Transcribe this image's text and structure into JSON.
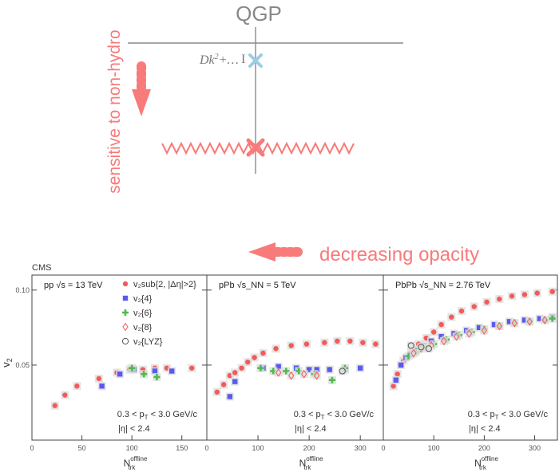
{
  "diagram": {
    "title": "QGP",
    "vertical_label": "sensitive to non-hydro",
    "horizontal_label": "decreasing opacity",
    "formula_main": "Dk",
    "formula_sup": "2",
    "formula_tail": "+…",
    "formula_bar": "I",
    "colors": {
      "arrow": "#f87a7a",
      "line": "#8a8a8a",
      "text_red": "#f87a7a",
      "marker_blue": "#9ccde8",
      "marker_red": "#f87a7a"
    }
  },
  "figure": {
    "experiment": "CMS",
    "cut_pt": "0.3 < p",
    "cut_pt_sub": "T",
    "cut_pt_tail": " < 3.0 GeV/c",
    "cut_eta": "|η| < 2.4",
    "ylabel": "v",
    "ylabel_sub": "2",
    "xlabel_main": "N",
    "xlabel_sup": "offline",
    "xlabel_sub": "trk",
    "yticks": [
      0.05,
      0.1
    ],
    "ytick_labels": [
      "0.05",
      "0.10"
    ]
  },
  "chart_data": [
    {
      "type": "scatter",
      "panel_label": "pp",
      "system_text": "√s = 13 TeV",
      "xlim": [
        0,
        175
      ],
      "ylim": [
        0,
        0.11
      ],
      "xticks": [
        0,
        50,
        100,
        150
      ],
      "xtick_labels": [
        "0",
        "50",
        "100",
        "150"
      ],
      "legend": [
        "v₂sub{2, |Δη|>2}",
        "v₂{4}",
        "v₂{6}",
        "v₂{8}",
        "v₂{LYZ}"
      ],
      "legend_placement": "top-right",
      "series": [
        {
          "marker": "circle",
          "color": "#f35a5a",
          "x": [
            23,
            33,
            45,
            67,
            85,
            98,
            111,
            123,
            135,
            160
          ],
          "y": [
            0.023,
            0.03,
            0.036,
            0.041,
            0.045,
            0.047,
            0.047,
            0.048,
            0.048,
            0.048
          ]
        },
        {
          "marker": "square",
          "color": "#5a5af0",
          "x": [
            70,
            88,
            102,
            123,
            140
          ],
          "y": [
            0.036,
            0.044,
            0.047,
            0.046,
            0.046
          ]
        },
        {
          "marker": "cross",
          "color": "#4dbb4d",
          "x": [
            100,
            112,
            125
          ],
          "y": [
            0.048,
            0.044,
            0.042
          ]
        }
      ]
    },
    {
      "type": "scatter",
      "panel_label": "pPb",
      "system_text": "√s_NN = 5 TeV",
      "xlim": [
        0,
        345
      ],
      "ylim": [
        0,
        0.11
      ],
      "xticks": [
        0,
        100,
        200,
        300
      ],
      "xtick_labels": [
        "0",
        "100",
        "200",
        "300"
      ],
      "series": [
        {
          "marker": "circle",
          "color": "#f35a5a",
          "x": [
            20,
            33,
            45,
            55,
            68,
            80,
            93,
            110,
            135,
            165,
            195,
            230,
            255,
            280,
            305,
            330
          ],
          "y": [
            0.032,
            0.037,
            0.043,
            0.045,
            0.048,
            0.052,
            0.055,
            0.058,
            0.061,
            0.063,
            0.064,
            0.065,
            0.066,
            0.066,
            0.065,
            0.064
          ]
        },
        {
          "marker": "square",
          "color": "#5a5af0",
          "x": [
            45,
            55,
            110,
            140,
            175,
            200,
            215,
            240,
            270,
            300
          ],
          "y": [
            0.029,
            0.039,
            0.048,
            0.049,
            0.048,
            0.047,
            0.047,
            0.047,
            0.047,
            0.048
          ]
        },
        {
          "marker": "cross",
          "color": "#4dbb4d",
          "x": [
            105,
            130,
            155,
            180,
            210,
            245,
            270
          ],
          "y": [
            0.048,
            0.046,
            0.046,
            0.046,
            0.044,
            0.04,
            0.048
          ]
        },
        {
          "marker": "diamond",
          "color": "#f35a5a",
          "x": [
            140,
            165,
            190,
            215
          ],
          "y": [
            0.045,
            0.043,
            0.044,
            0.043
          ]
        },
        {
          "marker": "open_circle",
          "color": "#555555",
          "x": [
            265
          ],
          "y": [
            0.046
          ]
        }
      ]
    },
    {
      "type": "scatter",
      "panel_label": "PbPb",
      "system_text": "√s_NN = 2.76 TeV",
      "xlim": [
        0,
        345
      ],
      "ylim": [
        0,
        0.11
      ],
      "xticks": [
        0,
        100,
        200,
        300
      ],
      "xtick_labels": [
        "0",
        "100",
        "200",
        "300"
      ],
      "series": [
        {
          "marker": "circle",
          "color": "#f35a5a",
          "x": [
            20,
            28,
            40,
            55,
            70,
            85,
            100,
            115,
            135,
            155,
            180,
            205,
            230,
            255,
            280,
            305,
            335
          ],
          "y": [
            0.036,
            0.044,
            0.053,
            0.058,
            0.064,
            0.068,
            0.072,
            0.077,
            0.082,
            0.086,
            0.089,
            0.092,
            0.094,
            0.096,
            0.097,
            0.098,
            0.099
          ]
        },
        {
          "marker": "square",
          "color": "#5a5af0",
          "x": [
            25,
            35,
            45,
            55,
            65,
            80,
            95,
            115,
            140,
            165,
            190,
            220,
            250,
            280,
            310,
            335
          ],
          "y": [
            0.04,
            0.05,
            0.055,
            0.057,
            0.06,
            0.063,
            0.066,
            0.069,
            0.071,
            0.073,
            0.075,
            0.077,
            0.079,
            0.08,
            0.081,
            0.082
          ]
        },
        {
          "marker": "cross",
          "color": "#4dbb4d",
          "x": [
            50,
            65,
            80,
            100,
            125,
            150,
            175,
            200,
            230,
            260,
            290,
            320,
            335
          ],
          "y": [
            0.056,
            0.059,
            0.062,
            0.064,
            0.067,
            0.07,
            0.072,
            0.074,
            0.076,
            0.078,
            0.079,
            0.08,
            0.081
          ]
        },
        {
          "marker": "diamond",
          "color": "#f35a5a",
          "x": [
            60,
            75,
            95,
            120,
            145,
            170,
            200,
            230,
            260,
            290,
            320
          ],
          "y": [
            0.058,
            0.061,
            0.063,
            0.066,
            0.069,
            0.071,
            0.073,
            0.076,
            0.078,
            0.079,
            0.08
          ]
        },
        {
          "marker": "open_circle",
          "color": "#555555",
          "x": [
            55,
            75,
            90
          ],
          "y": [
            0.063,
            0.062,
            0.061
          ]
        }
      ]
    }
  ]
}
